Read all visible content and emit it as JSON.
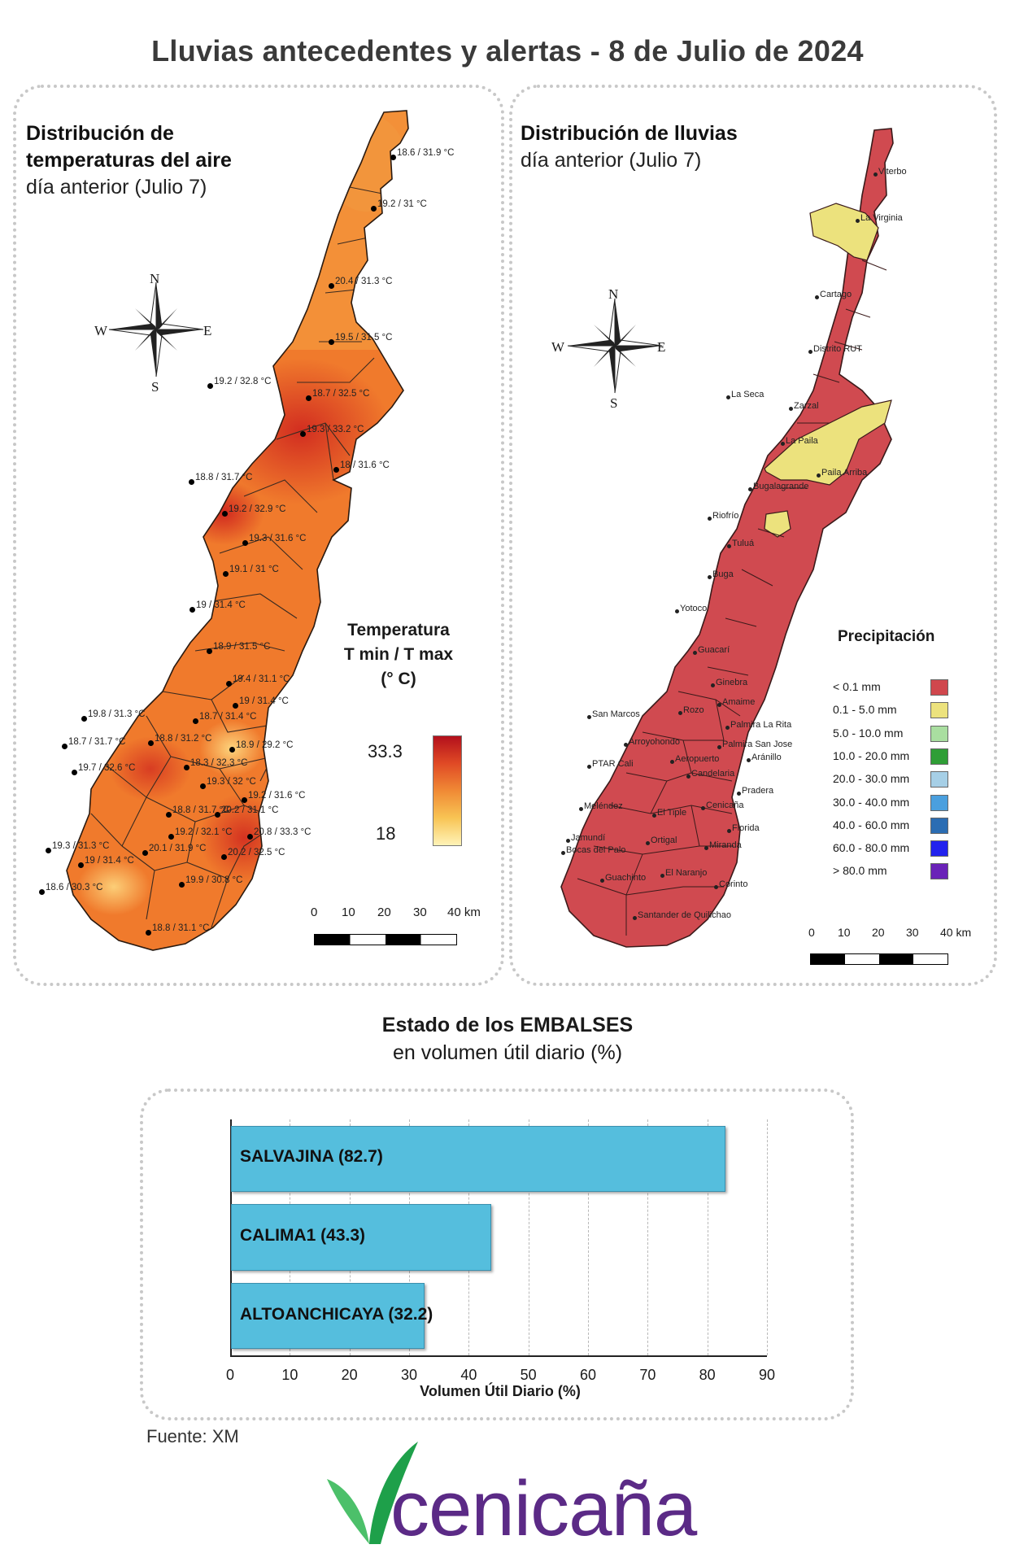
{
  "title": "Lluvias antecedentes y alertas - 8 de Julio de 2024",
  "temp_panel": {
    "title_line1": "Distribución de",
    "title_line2": "temperaturas del aire",
    "subtitle": "día anterior (Julio 7)",
    "legend_title_1": "Temperatura",
    "legend_title_2": "T min / T max",
    "legend_title_3": "(° C)",
    "legend_max": "33.3",
    "legend_min": "18",
    "scale_labels": [
      "0",
      "10",
      "20",
      "30",
      "40 km"
    ],
    "compass": {
      "n": "N",
      "s": "S",
      "e": "E",
      "w": "W"
    },
    "stations": [
      "18.6 / 31.9 °C",
      "19.2 / 31 °C",
      "20.4 / 31.3 °C",
      "19.5 / 31.5 °C",
      "19.2 / 32.8 °C",
      "18.7 / 32.5 °C",
      "19.3 / 33.2 °C",
      "18 / 31.6 °C",
      "18.8 / 31.7 °C",
      "19.2 / 32.9 °C",
      "19.3 / 31.6 °C",
      "19.1 / 31 °C",
      "19 / 31.4 °C",
      "18.9 / 31.5 °C",
      "19.4 / 31.1 °C",
      "19 / 31.4 °C",
      "19.8 / 31.3 °C",
      "18.7 / 31.4 °C",
      "18.7 / 31.7 °C",
      "18.8 / 31.2 °C",
      "18.9 / 29.2 °C",
      "19.7 / 32.6 °C",
      "18.3 / 32.3 °C",
      "19.3 / 32 °C",
      "19.2 / 31.6 °C",
      "18.8 / 31.7 °C",
      "20.2 / 31.1 °C",
      "19.2 / 32.1 °C",
      "20.8 / 33.3 °C",
      "19.3 / 31.3 °C",
      "20.1 / 31.9 °C",
      "20.2 / 32.5 °C",
      "19 / 31.4 °C",
      "18.6 / 30.3 °C",
      "19.9 / 30.8 °C",
      "18.8 / 31.1 °C"
    ]
  },
  "rain_panel": {
    "title": "Distribución de lluvias",
    "subtitle": "día anterior (Julio 7)",
    "legend_title": "Precipitación",
    "legend": [
      {
        "label": "< 0.1 mm",
        "color": "#d0474d"
      },
      {
        "label": "0.1 - 5.0 mm",
        "color": "#ece27d"
      },
      {
        "label": "5.0 - 10.0 mm",
        "color": "#a9dea0"
      },
      {
        "label": "10.0 - 20.0 mm",
        "color": "#2f9e36"
      },
      {
        "label": "20.0 - 30.0 mm",
        "color": "#a6cfe6"
      },
      {
        "label": "30.0 - 40.0 mm",
        "color": "#4a9fde"
      },
      {
        "label": "40.0 - 60.0 mm",
        "color": "#2b6db3"
      },
      {
        "label": "60.0 - 80.0 mm",
        "color": "#2222ee"
      },
      {
        "label": "> 80.0 mm",
        "color": "#6a22b8"
      }
    ],
    "scale_labels": [
      "0",
      "10",
      "20",
      "30",
      "40 km"
    ],
    "compass": {
      "n": "N",
      "s": "S",
      "e": "E",
      "w": "W"
    },
    "places": [
      "Viterbo",
      "La Virginia",
      "Cartago",
      "Distrito RUT",
      "La Seca",
      "Zarzal",
      "La Paila",
      "Paila Arriba",
      "Bugalagrande",
      "Riofrío",
      "Tuluá",
      "Buga",
      "Yotoco",
      "Guacarí",
      "Ginebra",
      "Amaime",
      "San Marcos",
      "Rozo",
      "Palmira La Rita",
      "Arroyohondo",
      "Palmira San Jose",
      "Aeropuerto",
      "Aránillo",
      "PTAR Cali",
      "Candelaria",
      "Pradera",
      "Meléndez",
      "El Tiple",
      "Cenicaña",
      "Jamundí",
      "Bocas del Palo",
      "Ortigal",
      "Florida",
      "Miranda",
      "Guachinto",
      "El Naranjo",
      "Corinto",
      "Santander de Quilichao"
    ]
  },
  "reservoirs": {
    "title": "Estado de los EMBALSES",
    "subtitle": "en volumen útil diario (%)",
    "xlabel": "Volumen Útil Diario (%)",
    "ticks": [
      "0",
      "10",
      "20",
      "30",
      "40",
      "50",
      "60",
      "70",
      "80",
      "90"
    ]
  },
  "chart_data": {
    "type": "bar",
    "orientation": "horizontal",
    "categories": [
      "SALVAJINA",
      "CALIMA1",
      "ALTOANCHICAYA"
    ],
    "values": [
      82.7,
      43.3,
      32.2
    ],
    "bar_labels": [
      "SALVAJINA (82.7)",
      "CALIMA1 (43.3)",
      "ALTOANCHICAYA (32.2)"
    ],
    "title": "",
    "xlabel": "Volumen Útil Diario (%)",
    "ylabel": "",
    "xlim": [
      0,
      90
    ],
    "grid": true,
    "bar_color": "#55bedd"
  },
  "source": "Fuente: XM",
  "logo": "cenicaña"
}
